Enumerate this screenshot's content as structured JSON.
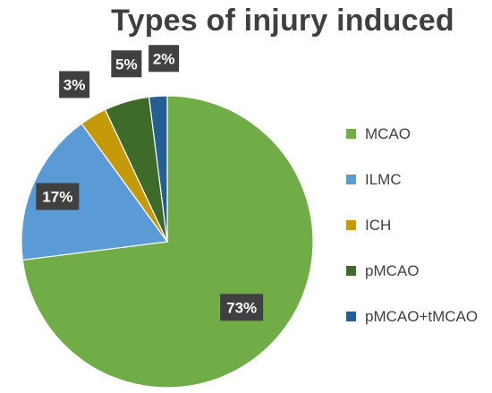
{
  "chart_data": {
    "type": "pie",
    "title": "Types of injury induced",
    "categories": [
      "MCAO",
      "ILMC",
      "ICH",
      "pMCAO",
      "pMCAO+tMCAO"
    ],
    "values": [
      73,
      17,
      3,
      5,
      2
    ],
    "value_labels": [
      "73%",
      "17%",
      "3%",
      "5%",
      "2%"
    ],
    "colors": [
      "#70ad47",
      "#5b9bd5",
      "#c59a0a",
      "#3e6b2a",
      "#255e91"
    ],
    "legend_position": "right"
  }
}
